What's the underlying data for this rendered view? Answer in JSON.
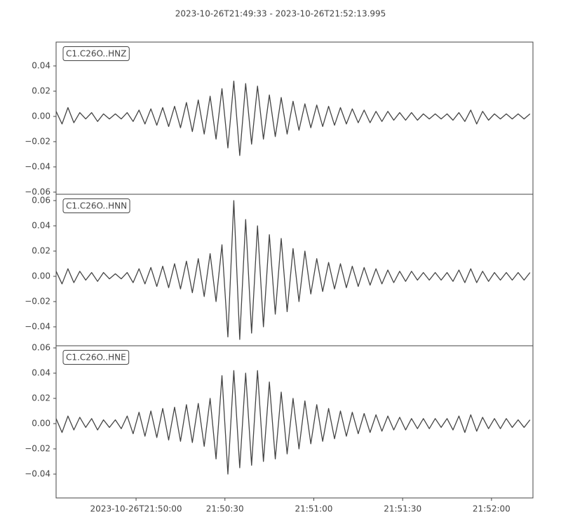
{
  "title": "2023-10-26T21:49:33  -  2023-10-26T21:52:13.995",
  "chart_data": [
    {
      "type": "line",
      "xlim": [
        0,
        160.995
      ],
      "ylim": [
        -0.0617,
        0.0589
      ],
      "yticks": [
        {
          "value": -0.06,
          "label": "−0.06"
        },
        {
          "value": -0.04,
          "label": "−0.04"
        },
        {
          "value": -0.02,
          "label": "−0.02"
        },
        {
          "value": 0,
          "label": "0.00"
        },
        0.02,
        0.04
      ],
      "x": [
        0,
        2,
        4,
        6,
        8,
        10,
        12,
        14,
        16,
        18,
        20,
        22,
        24,
        26,
        28,
        30,
        32,
        34,
        36,
        38,
        40,
        42,
        44,
        46,
        48,
        50,
        52,
        54,
        56,
        58,
        60,
        62,
        64,
        66,
        68,
        70,
        72,
        74,
        76,
        78,
        80,
        82,
        84,
        86,
        88,
        90,
        92,
        94,
        96,
        98,
        100,
        102,
        104,
        106,
        108,
        110,
        112,
        114,
        116,
        118,
        120,
        122,
        124,
        126,
        128,
        130,
        132,
        134,
        136,
        138,
        140,
        142,
        144,
        146,
        148,
        150,
        152,
        154,
        156,
        158,
        160
      ],
      "series": [
        {
          "name": "C1.C26O..HNZ",
          "color": "#444444",
          "values": [
            0.004,
            -0.006,
            0.007,
            -0.005,
            0.003,
            -0.002,
            0.003,
            -0.004,
            0.002,
            -0.002,
            0.002,
            -0.002,
            0.003,
            -0.004,
            0.005,
            -0.006,
            0.006,
            -0.007,
            0.007,
            -0.008,
            0.008,
            -0.009,
            0.011,
            -0.012,
            0.013,
            -0.014,
            0.016,
            -0.018,
            0.022,
            -0.025,
            0.028,
            -0.031,
            0.026,
            -0.022,
            0.024,
            -0.018,
            0.017,
            -0.016,
            0.015,
            -0.014,
            0.012,
            -0.011,
            0.01,
            -0.009,
            0.009,
            -0.008,
            0.008,
            -0.007,
            0.007,
            -0.006,
            0.006,
            -0.005,
            0.005,
            -0.005,
            0.004,
            -0.004,
            0.004,
            -0.003,
            0.003,
            -0.003,
            0.003,
            -0.003,
            0.002,
            -0.002,
            0.002,
            -0.002,
            0.002,
            -0.003,
            0.003,
            -0.004,
            0.005,
            -0.006,
            0.004,
            -0.003,
            0.002,
            -0.002,
            0.002,
            -0.002,
            0.002,
            -0.002,
            0.002
          ]
        }
      ]
    },
    {
      "type": "line",
      "xlim": [
        0,
        160.995
      ],
      "ylim": [
        -0.055,
        0.065
      ],
      "yticks": [
        {
          "value": -0.04,
          "label": "−0.04"
        },
        {
          "value": -0.02,
          "label": "−0.02"
        },
        {
          "value": 0,
          "label": "0.00"
        },
        0.02,
        0.04,
        0.06
      ],
      "x": [
        0,
        2,
        4,
        6,
        8,
        10,
        12,
        14,
        16,
        18,
        20,
        22,
        24,
        26,
        28,
        30,
        32,
        34,
        36,
        38,
        40,
        42,
        44,
        46,
        48,
        50,
        52,
        54,
        56,
        58,
        60,
        62,
        64,
        66,
        68,
        70,
        72,
        74,
        76,
        78,
        80,
        82,
        84,
        86,
        88,
        90,
        92,
        94,
        96,
        98,
        100,
        102,
        104,
        106,
        108,
        110,
        112,
        114,
        116,
        118,
        120,
        122,
        124,
        126,
        128,
        130,
        132,
        134,
        136,
        138,
        140,
        142,
        144,
        146,
        148,
        150,
        152,
        154,
        156,
        158,
        160
      ],
      "series": [
        {
          "name": "C1.C26O..HNN",
          "color": "#444444",
          "values": [
            0.004,
            -0.006,
            0.006,
            -0.005,
            0.004,
            -0.003,
            0.003,
            -0.004,
            0.003,
            -0.002,
            0.002,
            -0.002,
            0.003,
            -0.005,
            0.006,
            -0.006,
            0.007,
            -0.008,
            0.008,
            -0.009,
            0.01,
            -0.01,
            0.012,
            -0.013,
            0.014,
            -0.016,
            0.018,
            -0.02,
            0.025,
            -0.048,
            0.06,
            -0.05,
            0.045,
            -0.045,
            0.04,
            -0.04,
            0.033,
            -0.03,
            0.03,
            -0.028,
            0.022,
            -0.02,
            0.02,
            -0.014,
            0.014,
            -0.012,
            0.011,
            -0.01,
            0.01,
            -0.009,
            0.008,
            -0.008,
            0.007,
            -0.007,
            0.006,
            -0.006,
            0.005,
            -0.005,
            0.004,
            -0.004,
            0.004,
            -0.003,
            0.003,
            -0.003,
            0.003,
            -0.003,
            0.003,
            -0.004,
            0.005,
            -0.005,
            0.006,
            -0.005,
            0.004,
            -0.004,
            0.003,
            -0.003,
            0.003,
            -0.003,
            0.003,
            -0.003,
            0.003
          ]
        }
      ]
    },
    {
      "type": "line",
      "xlim": [
        0,
        160.995
      ],
      "ylim": [
        -0.0589,
        0.0617
      ],
      "yticks": [
        {
          "value": -0.04,
          "label": "−0.04"
        },
        {
          "value": -0.02,
          "label": "−0.02"
        },
        {
          "value": 0,
          "label": "0.00"
        },
        0.02,
        0.04,
        0.06
      ],
      "xticks": [
        {
          "value": 27,
          "label": "2023-10-26T21:50:00"
        },
        {
          "value": 57,
          "label": "21:50:30"
        },
        {
          "value": 87,
          "label": "21:51:00"
        },
        {
          "value": 117,
          "label": "21:51:30"
        },
        {
          "value": 147,
          "label": "21:52:00"
        }
      ],
      "x": [
        0,
        2,
        4,
        6,
        8,
        10,
        12,
        14,
        16,
        18,
        20,
        22,
        24,
        26,
        28,
        30,
        32,
        34,
        36,
        38,
        40,
        42,
        44,
        46,
        48,
        50,
        52,
        54,
        56,
        58,
        60,
        62,
        64,
        66,
        68,
        70,
        72,
        74,
        76,
        78,
        80,
        82,
        84,
        86,
        88,
        90,
        92,
        94,
        96,
        98,
        100,
        102,
        104,
        106,
        108,
        110,
        112,
        114,
        116,
        118,
        120,
        122,
        124,
        126,
        128,
        130,
        132,
        134,
        136,
        138,
        140,
        142,
        144,
        146,
        148,
        150,
        152,
        154,
        156,
        158,
        160
      ],
      "series": [
        {
          "name": "C1.C26O..HNE",
          "color": "#444444",
          "values": [
            0.004,
            -0.007,
            0.006,
            -0.005,
            0.005,
            -0.003,
            0.004,
            -0.005,
            0.003,
            -0.003,
            0.003,
            -0.004,
            0.006,
            -0.008,
            0.009,
            -0.01,
            0.01,
            -0.011,
            0.012,
            -0.013,
            0.013,
            -0.014,
            0.015,
            -0.015,
            0.016,
            -0.018,
            0.02,
            -0.028,
            0.038,
            -0.04,
            0.042,
            -0.035,
            0.04,
            -0.033,
            0.042,
            -0.03,
            0.033,
            -0.028,
            0.025,
            -0.024,
            0.02,
            -0.02,
            0.018,
            -0.016,
            0.015,
            -0.014,
            0.012,
            -0.012,
            0.01,
            -0.01,
            0.009,
            -0.008,
            0.008,
            -0.007,
            0.007,
            -0.006,
            0.006,
            -0.005,
            0.005,
            -0.005,
            0.004,
            -0.004,
            0.004,
            -0.004,
            0.004,
            -0.003,
            0.004,
            -0.005,
            0.006,
            -0.007,
            0.007,
            -0.006,
            0.005,
            -0.004,
            0.004,
            -0.004,
            0.004,
            -0.003,
            0.003,
            -0.003,
            0.003
          ]
        }
      ]
    }
  ]
}
